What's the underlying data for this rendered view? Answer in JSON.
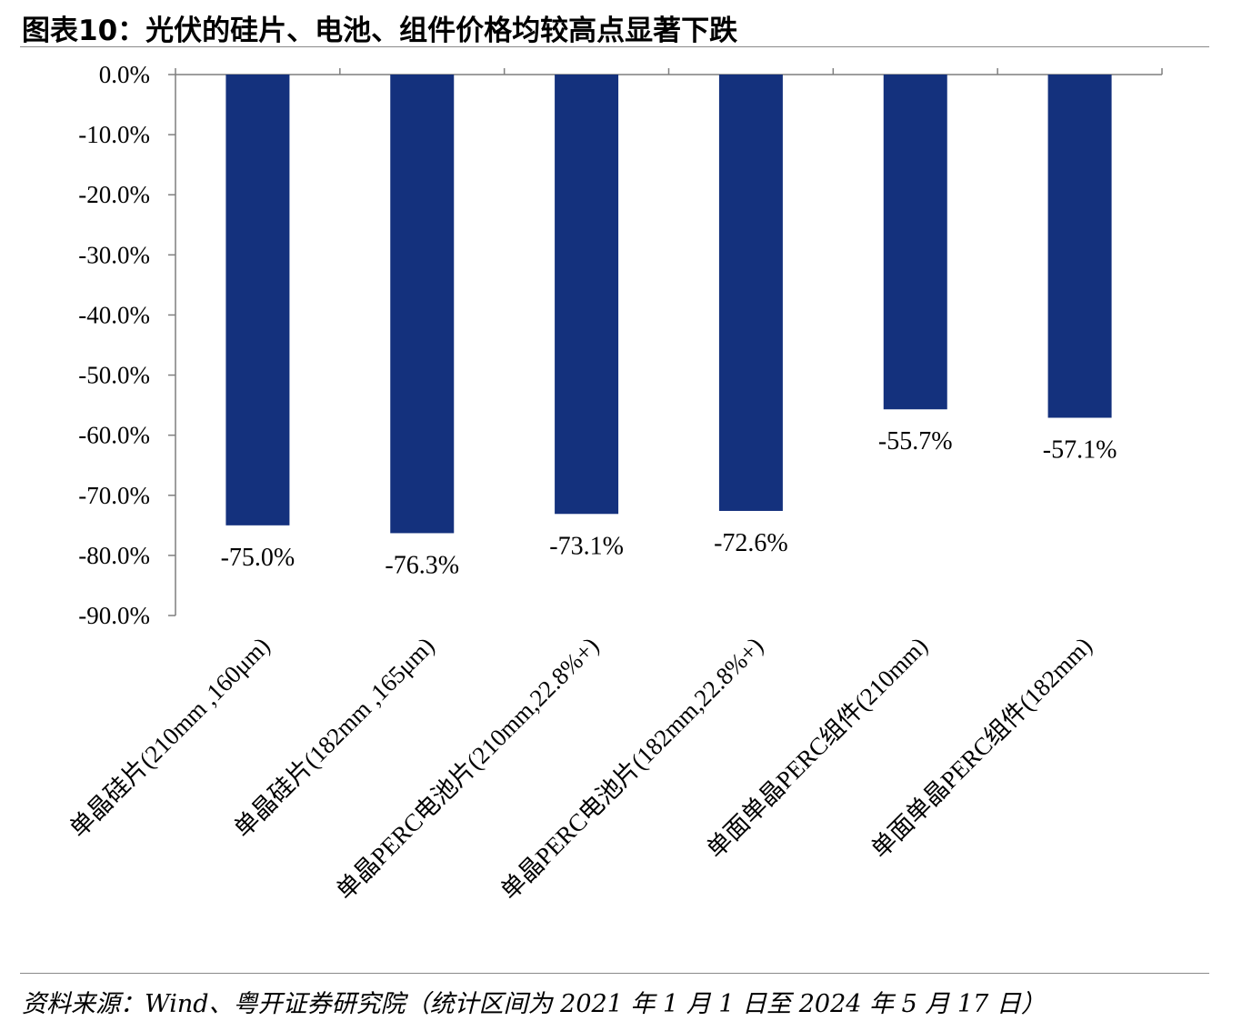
{
  "header": {
    "title": "图表10：光伏的硅片、电池、组件价格均较高点显著下跌"
  },
  "footer": {
    "source": "资料来源：Wind、粤开证券研究院（统计区间为 2021 年 1 月 1 日至 2024 年 5 月 17 日）"
  },
  "chart_data": {
    "type": "bar",
    "categories": [
      "单晶硅片(210mm ,160μm)",
      "单晶硅片(182mm ,165μm)",
      "单晶PERC电池片(210mm,22.8%+)",
      "单晶PERC电池片(182mm,22.8%+)",
      "单面单晶PERC组件(210mm)",
      "单面单晶PERC组件(182mm)"
    ],
    "values": [
      -75.0,
      -76.3,
      -73.1,
      -72.6,
      -55.7,
      -57.1
    ],
    "data_labels": [
      "-75.0%",
      "-76.3%",
      "-73.1%",
      "-72.6%",
      "-55.7%",
      "-57.1%"
    ],
    "ylim": [
      -90,
      0
    ],
    "yticks": [
      0,
      -10,
      -20,
      -30,
      -40,
      -50,
      -60,
      -70,
      -80,
      -90
    ],
    "ytick_labels": [
      "0.0%",
      "-10.0%",
      "-20.0%",
      "-30.0%",
      "-40.0%",
      "-50.0%",
      "-60.0%",
      "-70.0%",
      "-80.0%",
      "-90.0%"
    ],
    "bar_color": "#14317d",
    "axis_color": "#7f7f7f",
    "grid": false,
    "legend": "none"
  }
}
